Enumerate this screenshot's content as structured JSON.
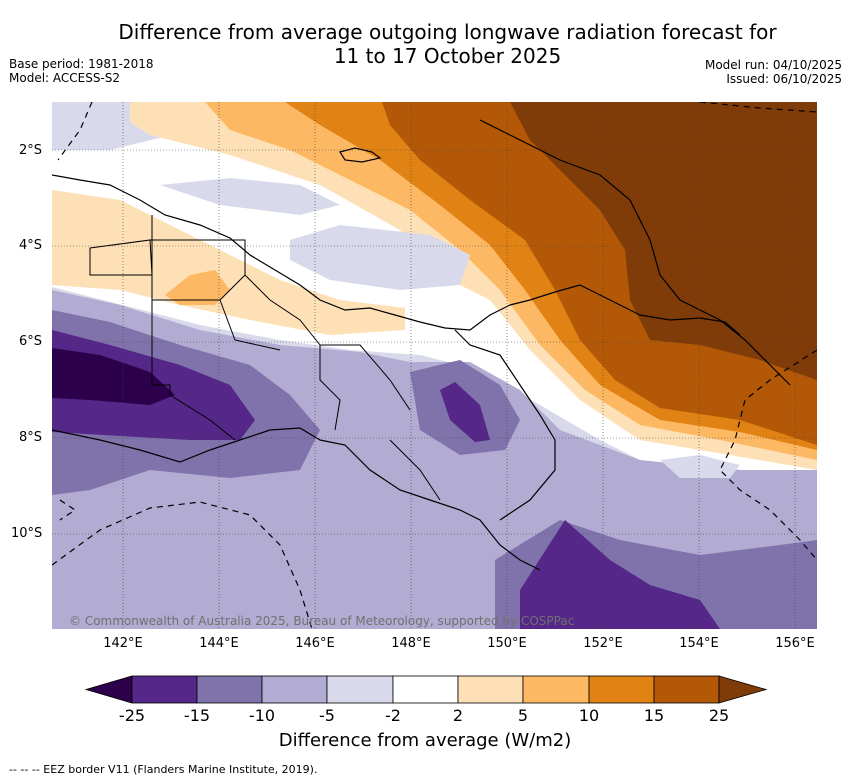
{
  "header": {
    "title_line1": "Difference from average outgoing longwave radiation forecast for",
    "title_line2": "11 to 17 October 2025",
    "base_period": "Base period: 1981-2018",
    "model": "Model: ACCESS-S2",
    "model_run": "Model run: 04/10/2025",
    "issued": "Issued: 06/10/2025"
  },
  "map": {
    "lat_labels": [
      "2°S",
      "4°S",
      "6°S",
      "8°S",
      "10°S"
    ],
    "lon_labels": [
      "142°E",
      "144°E",
      "146°E",
      "148°E",
      "150°E",
      "152°E",
      "154°E",
      "156°E"
    ],
    "credit": "© Commonwealth of Australia 2025, Bureau of Meteorology, supported by COSPPac"
  },
  "colorbar": {
    "tick_labels": [
      "-25",
      "-15",
      "-10",
      "-5",
      "-2",
      "2",
      "5",
      "10",
      "15",
      "25"
    ],
    "title": "Difference from average (W/m2)",
    "colors": [
      "#2d004b",
      "#542788",
      "#8073ac",
      "#b2abd2",
      "#d8daeb",
      "#ffffff",
      "#fee0b6",
      "#fdb863",
      "#e08214",
      "#b35806",
      "#7f3b08"
    ]
  },
  "footer": {
    "eez_note": "-- -- -- EEZ border V11 (Flanders Marine Institute, 2019)."
  }
}
